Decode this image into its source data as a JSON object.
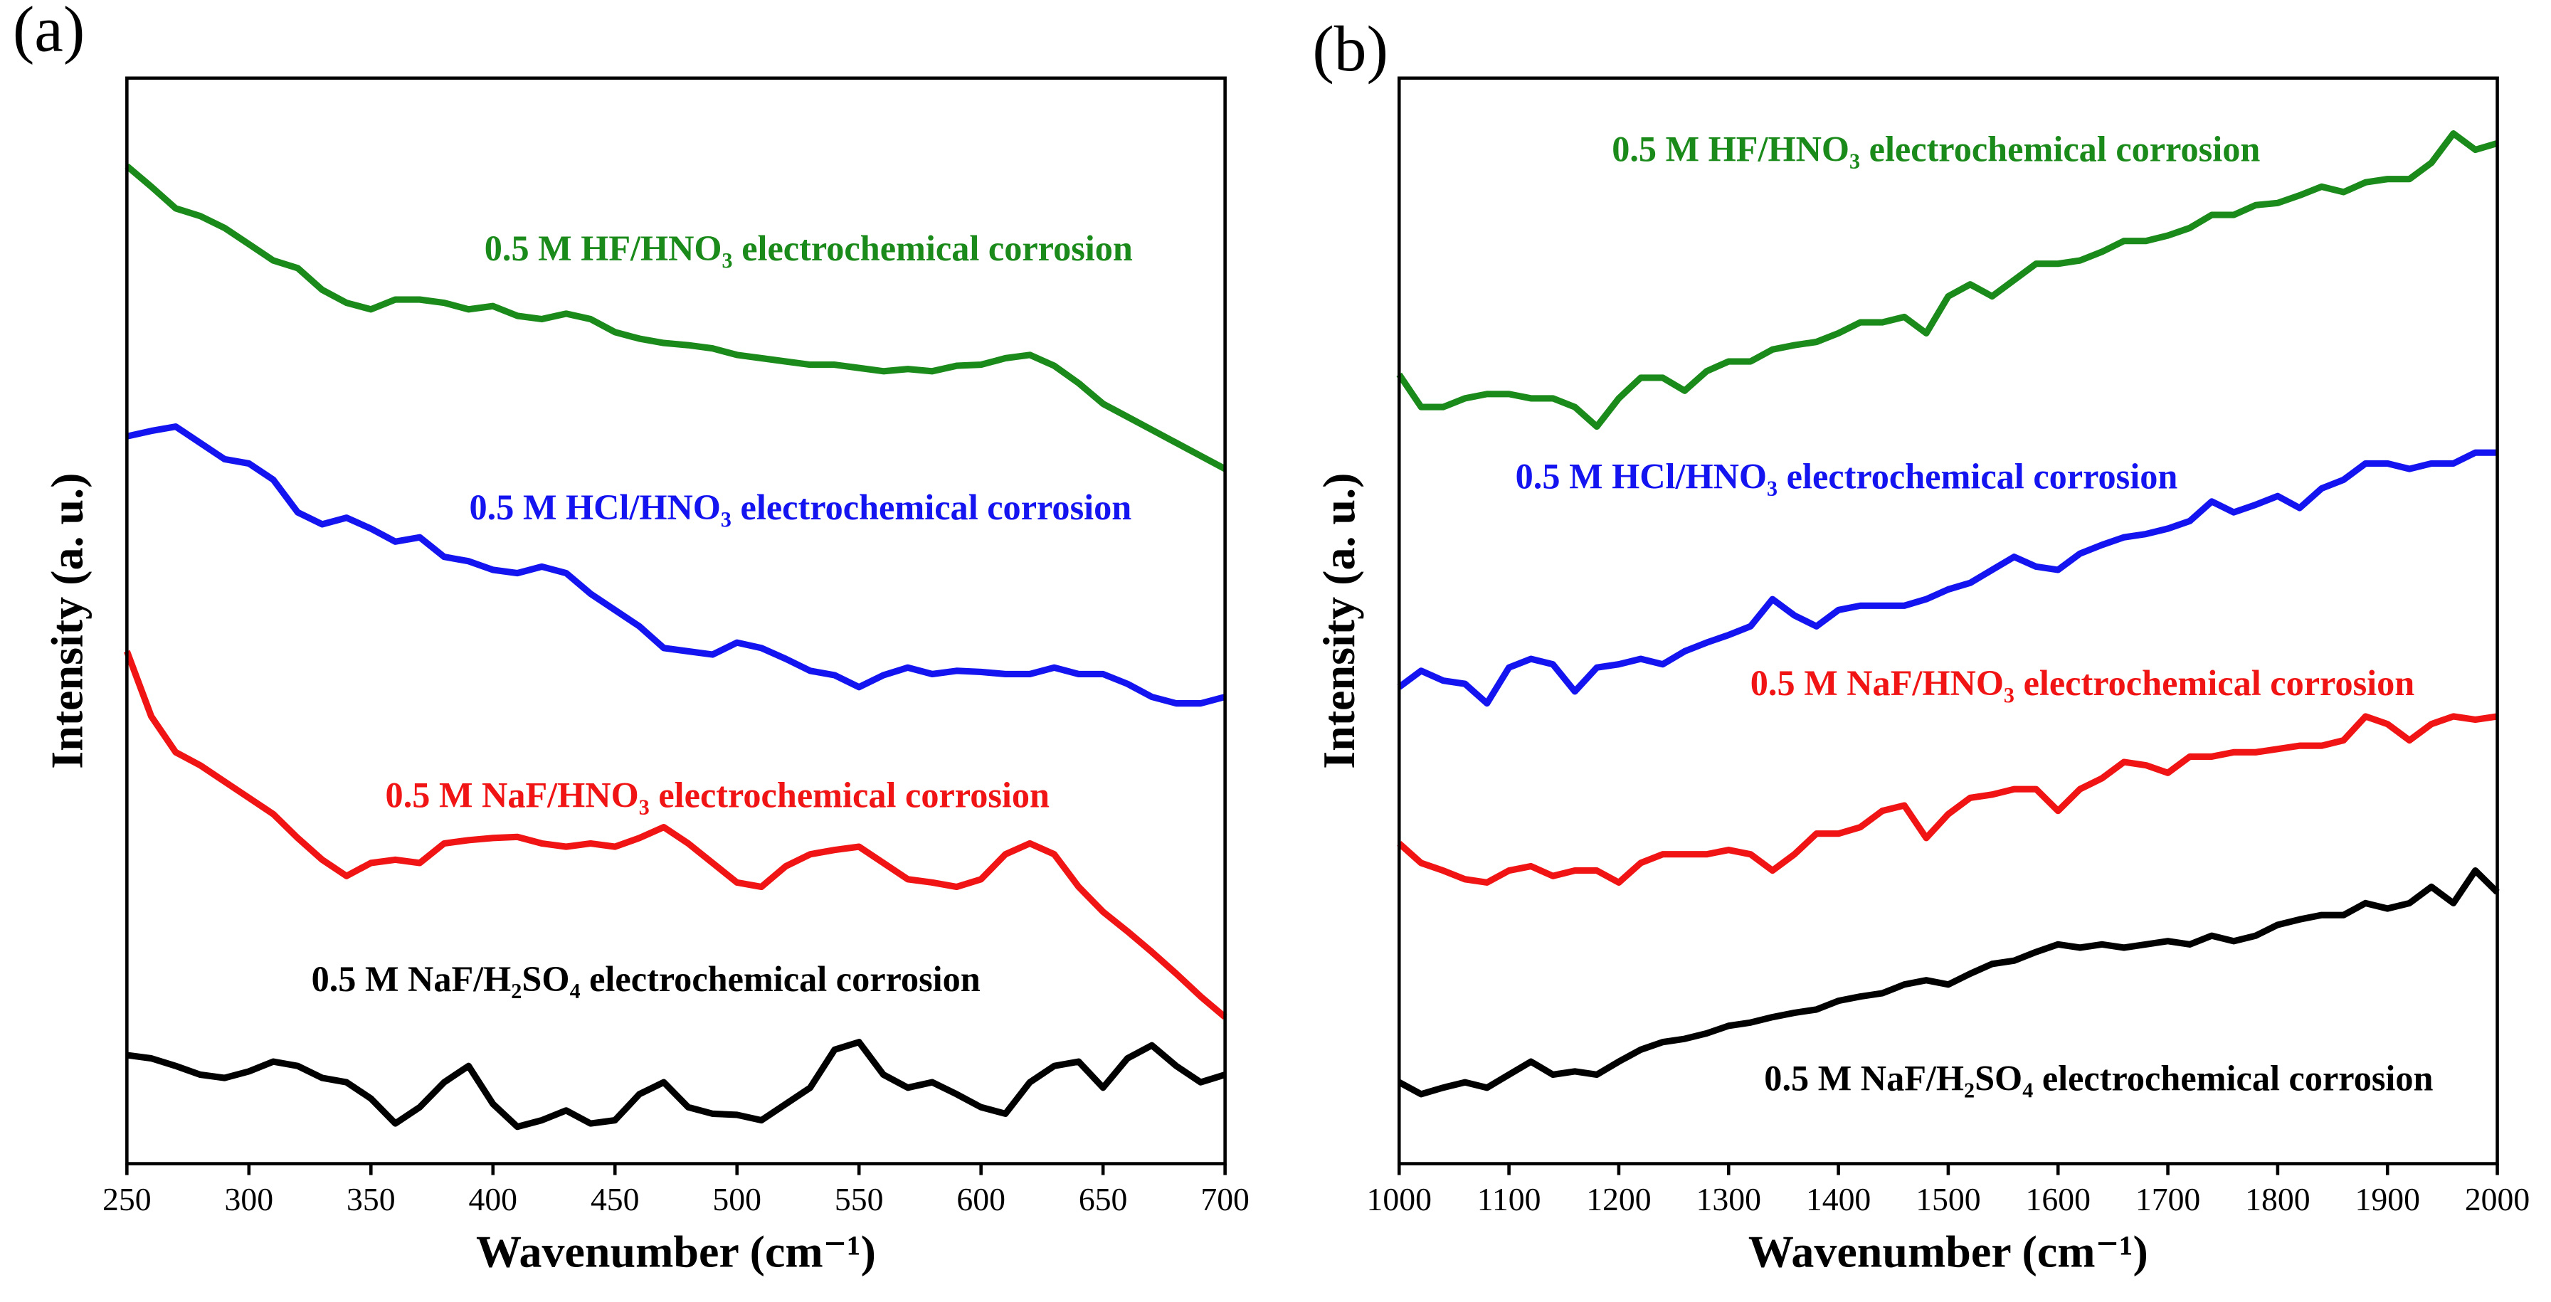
{
  "chart_data": [
    {
      "type": "line",
      "panel_label": "(a)",
      "x_label": "Wavenumber (cm⁻¹)",
      "y_label": "Intensity (a. u.)",
      "x": [
        250,
        260,
        270,
        280,
        290,
        300,
        310,
        320,
        330,
        340,
        350,
        360,
        370,
        380,
        390,
        400,
        410,
        420,
        430,
        440,
        450,
        460,
        470,
        480,
        490,
        500,
        510,
        520,
        530,
        540,
        550,
        560,
        570,
        580,
        590,
        600,
        610,
        620,
        630,
        640,
        650,
        660,
        670,
        680,
        690,
        700
      ],
      "xlim": [
        250,
        700
      ],
      "xticks": [
        250,
        300,
        350,
        400,
        450,
        500,
        550,
        600,
        650,
        700
      ],
      "ylim": [
        0,
        100
      ],
      "series": [
        {
          "name": "0.5 M HF/HNO₃ electrochemical corrosion",
          "color": "#1a8a1a",
          "values": [
            91.9,
            90.0,
            88.0,
            87.3,
            86.2,
            84.7,
            83.2,
            82.5,
            80.5,
            79.3,
            78.7,
            79.6,
            79.6,
            79.3,
            78.7,
            79.0,
            78.1,
            77.8,
            78.3,
            77.8,
            76.6,
            76.0,
            75.6,
            75.4,
            75.1,
            74.5,
            74.2,
            73.9,
            73.6,
            73.6,
            73.3,
            73.0,
            73.2,
            73.0,
            73.5,
            73.6,
            74.2,
            74.5,
            73.5,
            71.9,
            70.0,
            68.8,
            67.6,
            66.4,
            65.2,
            64.0
          ]
        },
        {
          "name": "0.5 M HCl/HNO₃ electrochemical corrosion",
          "color": "#1414f0",
          "values": [
            67.0,
            67.5,
            67.9,
            66.4,
            64.9,
            64.5,
            63.0,
            60.0,
            58.9,
            59.5,
            58.5,
            57.3,
            57.7,
            55.9,
            55.5,
            54.7,
            54.4,
            55.0,
            54.4,
            52.5,
            51.0,
            49.5,
            47.5,
            47.2,
            46.9,
            48.0,
            47.5,
            46.5,
            45.4,
            45.0,
            43.9,
            45.0,
            45.7,
            45.1,
            45.4,
            45.3,
            45.1,
            45.1,
            45.7,
            45.1,
            45.1,
            44.2,
            43.0,
            42.4,
            42.4,
            43.0
          ]
        },
        {
          "name": "0.5 M NaF/HNO₃ electrochemical corrosion",
          "color": "#f01414",
          "values": [
            47.2,
            41.2,
            37.9,
            36.7,
            35.2,
            33.7,
            32.2,
            30.0,
            28.0,
            26.5,
            27.7,
            28.0,
            27.7,
            29.5,
            29.8,
            30.0,
            30.1,
            29.5,
            29.2,
            29.5,
            29.2,
            30.0,
            31.0,
            29.5,
            27.7,
            25.9,
            25.5,
            27.4,
            28.5,
            28.9,
            29.2,
            27.7,
            26.2,
            25.9,
            25.5,
            26.2,
            28.5,
            29.5,
            28.5,
            25.5,
            23.2,
            21.4,
            19.5,
            17.5,
            15.4,
            13.5
          ]
        },
        {
          "name": "0.5 M NaF/H₂SO₄ electrochemical corrosion",
          "color": "#000000",
          "values": [
            10.0,
            9.7,
            9.0,
            8.2,
            7.9,
            8.5,
            9.4,
            9.0,
            7.9,
            7.5,
            6.0,
            3.7,
            5.2,
            7.5,
            9.0,
            5.5,
            3.4,
            4.0,
            4.9,
            3.7,
            4.0,
            6.4,
            7.5,
            5.2,
            4.6,
            4.5,
            4.0,
            5.5,
            7.0,
            10.5,
            11.2,
            8.2,
            7.0,
            7.5,
            6.4,
            5.2,
            4.6,
            7.5,
            9.0,
            9.4,
            7.0,
            9.7,
            10.9,
            9.0,
            7.5,
            8.2
          ]
        }
      ]
    },
    {
      "type": "line",
      "panel_label": "(b)",
      "x_label": "Wavenumber (cm⁻¹)",
      "y_label": "Intensity (a. u.)",
      "x": [
        1000,
        1020,
        1040,
        1060,
        1080,
        1100,
        1120,
        1140,
        1160,
        1180,
        1200,
        1220,
        1240,
        1260,
        1280,
        1300,
        1320,
        1340,
        1360,
        1380,
        1400,
        1420,
        1440,
        1460,
        1480,
        1500,
        1520,
        1540,
        1560,
        1580,
        1600,
        1620,
        1640,
        1660,
        1680,
        1700,
        1720,
        1740,
        1760,
        1780,
        1800,
        1820,
        1840,
        1860,
        1880,
        1900,
        1920,
        1940,
        1960,
        1980,
        2000
      ],
      "xlim": [
        1000,
        2000
      ],
      "xticks": [
        1000,
        1100,
        1200,
        1300,
        1400,
        1500,
        1600,
        1700,
        1800,
        1900,
        2000
      ],
      "ylim": [
        0,
        100
      ],
      "series": [
        {
          "name": "0.5 M HF/HNO₃ electrochemical corrosion",
          "color": "#1a8a1a",
          "values": [
            72.7,
            69.7,
            69.7,
            70.5,
            70.9,
            70.9,
            70.5,
            70.5,
            69.7,
            67.9,
            70.5,
            72.4,
            72.4,
            71.2,
            73.0,
            73.9,
            73.9,
            75.0,
            75.4,
            75.7,
            76.5,
            77.5,
            77.5,
            78.0,
            76.5,
            79.9,
            81.0,
            79.9,
            81.4,
            82.9,
            82.9,
            83.2,
            84.0,
            85.0,
            85.0,
            85.5,
            86.2,
            87.4,
            87.4,
            88.3,
            88.5,
            89.2,
            90.0,
            89.5,
            90.4,
            90.7,
            90.7,
            92.2,
            94.9,
            93.4,
            94.0
          ]
        },
        {
          "name": "0.5 M HCl/HNO₃ electrochemical corrosion",
          "color": "#1414f0",
          "values": [
            43.9,
            45.4,
            44.5,
            44.2,
            42.4,
            45.7,
            46.5,
            46.0,
            43.5,
            45.7,
            46.0,
            46.5,
            46.0,
            47.2,
            48.0,
            48.7,
            49.5,
            52.0,
            50.5,
            49.5,
            51.0,
            51.4,
            51.4,
            51.4,
            52.0,
            52.9,
            53.5,
            54.7,
            55.9,
            55.0,
            54.7,
            56.2,
            57.0,
            57.7,
            58.0,
            58.5,
            59.2,
            61.0,
            60.0,
            60.7,
            61.5,
            60.4,
            62.2,
            63.0,
            64.5,
            64.5,
            64.0,
            64.5,
            64.5,
            65.5,
            65.5
          ]
        },
        {
          "name": "0.5 M NaF/HNO₃ electrochemical corrosion",
          "color": "#f01414",
          "values": [
            29.5,
            27.7,
            27.0,
            26.2,
            25.9,
            27.0,
            27.4,
            26.5,
            27.0,
            27.0,
            25.9,
            27.7,
            28.5,
            28.5,
            28.5,
            28.9,
            28.5,
            27.0,
            28.5,
            30.4,
            30.4,
            31.0,
            32.5,
            33.0,
            30.0,
            32.2,
            33.7,
            34.0,
            34.5,
            34.5,
            32.5,
            34.5,
            35.5,
            37.0,
            36.7,
            36.0,
            37.5,
            37.5,
            37.9,
            37.9,
            38.2,
            38.5,
            38.5,
            39.0,
            41.2,
            40.5,
            39.0,
            40.5,
            41.2,
            40.9,
            41.2
          ]
        },
        {
          "name": "0.5 M NaF/H₂SO₄ electrochemical corrosion",
          "color": "#000000",
          "values": [
            7.5,
            6.4,
            7.0,
            7.5,
            7.0,
            8.2,
            9.4,
            8.2,
            8.5,
            8.2,
            9.4,
            10.5,
            11.2,
            11.5,
            12.0,
            12.7,
            13.0,
            13.5,
            13.9,
            14.2,
            15.0,
            15.4,
            15.7,
            16.5,
            16.9,
            16.5,
            17.5,
            18.4,
            18.7,
            19.5,
            20.2,
            19.9,
            20.2,
            19.9,
            20.2,
            20.5,
            20.2,
            21.0,
            20.5,
            21.0,
            22.0,
            22.5,
            22.9,
            22.9,
            24.0,
            23.5,
            24.0,
            25.5,
            24.0,
            27.0,
            25.0
          ]
        }
      ]
    }
  ]
}
